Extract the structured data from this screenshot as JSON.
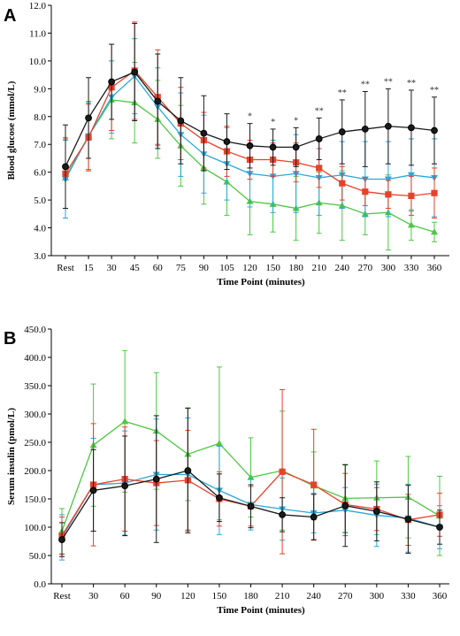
{
  "colors": {
    "black": "#1a1a1a",
    "red": "#e8412a",
    "cyan": "#2aa7d8",
    "green": "#4cc742"
  },
  "chart_data": [
    {
      "type": "line",
      "panel_label": "A",
      "xlabel": "Time Point (minutes)",
      "ylabel": "Blood glucose (mmol/L)",
      "ylim": [
        3.0,
        12.0
      ],
      "yticks": [
        "3.0",
        "4.0",
        "5.0",
        "6.0",
        "7.0",
        "8.0",
        "9.0",
        "10.0",
        "11.0",
        "12.0"
      ],
      "categories": [
        "Rest",
        "15",
        "30",
        "45",
        "60",
        "75",
        "90",
        "105",
        "120",
        "150",
        "180",
        "210",
        "240",
        "270",
        "300",
        "330",
        "360"
      ],
      "series": [
        {
          "color": "black",
          "marker": "circle",
          "values": [
            6.2,
            7.95,
            9.25,
            9.6,
            8.55,
            7.85,
            7.4,
            7.1,
            6.95,
            6.9,
            6.9,
            7.2,
            7.45,
            7.55,
            7.65,
            7.6,
            7.5
          ],
          "err": [
            1.5,
            1.45,
            1.35,
            1.75,
            1.7,
            1.55,
            1.35,
            1.0,
            0.8,
            0.65,
            0.7,
            0.75,
            1.15,
            1.35,
            1.35,
            1.35,
            1.2
          ]
        },
        {
          "color": "red",
          "marker": "square",
          "values": [
            5.95,
            7.25,
            9.05,
            9.65,
            8.7,
            7.75,
            7.15,
            6.75,
            6.45,
            6.45,
            6.35,
            6.15,
            5.6,
            5.3,
            5.2,
            5.15,
            5.25
          ],
          "err": [
            1.25,
            1.2,
            1.55,
            1.75,
            1.7,
            1.3,
            1.0,
            0.9,
            0.7,
            0.6,
            0.7,
            0.7,
            0.6,
            0.5,
            0.5,
            0.7,
            0.9
          ]
        },
        {
          "color": "cyan",
          "marker": "triangle-down",
          "values": [
            5.75,
            7.3,
            8.7,
            9.45,
            8.35,
            7.35,
            6.65,
            6.3,
            5.95,
            5.85,
            5.95,
            5.8,
            5.9,
            5.75,
            5.75,
            5.9,
            5.8
          ],
          "err": [
            1.4,
            1.2,
            1.3,
            1.35,
            1.4,
            1.5,
            1.4,
            1.3,
            1.2,
            1.3,
            1.4,
            1.35,
            1.2,
            1.35,
            1.35,
            1.3,
            1.4
          ]
        },
        {
          "color": "green",
          "marker": "triangle-up",
          "values": [
            5.8,
            7.3,
            8.6,
            8.5,
            7.9,
            6.95,
            6.15,
            5.65,
            4.95,
            4.85,
            4.7,
            4.9,
            4.8,
            4.5,
            4.55,
            4.1,
            3.85
          ],
          "err": [
            1.45,
            1.25,
            1.4,
            1.45,
            1.4,
            1.45,
            1.3,
            1.2,
            1.2,
            1.0,
            1.15,
            1.1,
            1.25,
            0.75,
            1.35,
            0.55,
            0.35
          ]
        }
      ],
      "annotations": [
        {
          "category": "120",
          "text": "*"
        },
        {
          "category": "150",
          "text": "*"
        },
        {
          "category": "180",
          "text": "*"
        },
        {
          "category": "210",
          "text": "**"
        },
        {
          "category": "240",
          "text": "**"
        },
        {
          "category": "270",
          "text": "**"
        },
        {
          "category": "300",
          "text": "**"
        },
        {
          "category": "330",
          "text": "**"
        },
        {
          "category": "360",
          "text": "**"
        }
      ]
    },
    {
      "type": "line",
      "panel_label": "B",
      "xlabel": "Time Point (minutes)",
      "ylabel": "Serum insulin (pmol/L)",
      "ylim": [
        0,
        450
      ],
      "yticks": [
        "0.0",
        "50.0",
        "100.0",
        "150.0",
        "200.0",
        "250.0",
        "300.0",
        "350.0",
        "400.0",
        "450.0"
      ],
      "categories": [
        "Rest",
        "30",
        "60",
        "90",
        "120",
        "150",
        "180",
        "210",
        "240",
        "270",
        "300",
        "330",
        "360"
      ],
      "series": [
        {
          "color": "black",
          "marker": "circle",
          "values": [
            78,
            165,
            173,
            185,
            200,
            152,
            137,
            122,
            118,
            138,
            128,
            114,
            100
          ],
          "err": [
            30,
            72,
            88,
            112,
            110,
            42,
            38,
            30,
            40,
            72,
            52,
            60,
            30
          ]
        },
        {
          "color": "red",
          "marker": "square",
          "values": [
            85,
            175,
            185,
            178,
            183,
            150,
            137,
            198,
            175,
            140,
            132,
            113,
            122
          ],
          "err": [
            33,
            108,
            92,
            75,
            88,
            48,
            35,
            145,
            98,
            55,
            38,
            45,
            38
          ]
        },
        {
          "color": "cyan",
          "marker": "triangle-down",
          "values": [
            82,
            175,
            178,
            193,
            193,
            165,
            140,
            132,
            125,
            130,
            121,
            116,
            100
          ],
          "err": [
            40,
            82,
            92,
            98,
            100,
            78,
            45,
            55,
            35,
            40,
            55,
            60,
            38
          ]
        },
        {
          "color": "green",
          "marker": "triangle-up",
          "values": [
            93,
            245,
            287,
            270,
            229,
            248,
            188,
            200,
            173,
            151,
            152,
            153,
            120
          ],
          "err": [
            40,
            108,
            125,
            103,
            82,
            135,
            70,
            105,
            60,
            60,
            65,
            72,
            70
          ]
        }
      ]
    }
  ]
}
